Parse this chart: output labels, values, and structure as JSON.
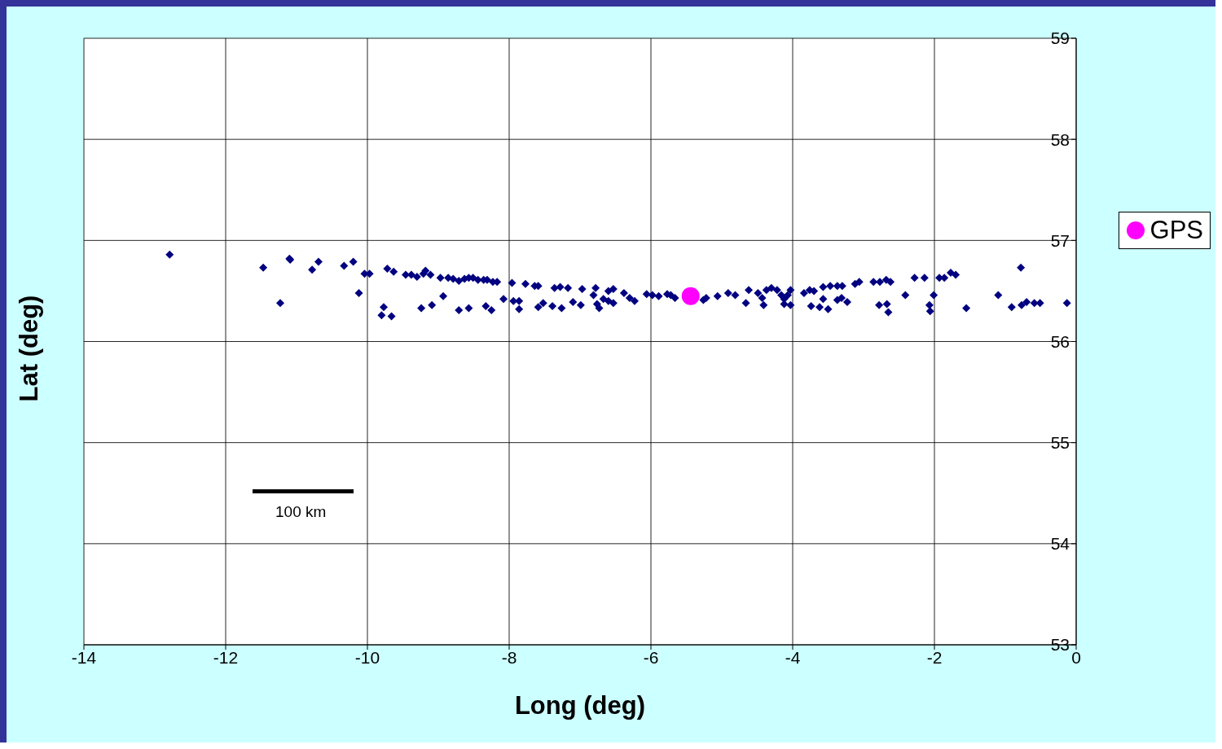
{
  "chart_data": {
    "type": "scatter",
    "xlabel": "Long (deg)",
    "ylabel": "Lat (deg)",
    "xlim": [
      -14,
      0
    ],
    "xticks": [
      -14,
      -12,
      -10,
      -8,
      -6,
      -4,
      -2,
      0
    ],
    "ylim": [
      53,
      59
    ],
    "yticks": [
      53,
      54,
      55,
      56,
      57,
      58,
      59
    ],
    "grid": true,
    "legend": "right",
    "marker": "diamond",
    "annotations": [
      "100 km"
    ],
    "series": [
      {
        "color": "#000080",
        "x": [
          -12.79,
          -11.47,
          -11.23,
          -11.1,
          -11.09,
          -10.78,
          -10.69,
          -10.33,
          -10.2,
          -10.12,
          -10.04,
          -9.97,
          -9.8,
          -9.77,
          -9.72,
          -9.66,
          -9.63,
          -9.46,
          -9.38,
          -9.3,
          -9.21,
          -9.18,
          -9.11,
          -9.24,
          -9.09,
          -8.97,
          -8.93,
          -8.86,
          -8.79,
          -8.71,
          -8.63,
          -8.57,
          -8.51,
          -8.44,
          -8.36,
          -8.31,
          -8.23,
          -8.17,
          -8.71,
          -8.57,
          -8.33,
          -8.25,
          -8.08,
          -7.96,
          -7.94,
          -7.86,
          -7.86,
          -7.77,
          -7.64,
          -7.59,
          -7.59,
          -7.52,
          -7.39,
          -7.36,
          -7.28,
          -7.26,
          -7.17,
          -7.1,
          -6.99,
          -6.97,
          -6.81,
          -6.76,
          -6.78,
          -6.73,
          -6.67,
          -6.6,
          -6.53,
          -6.6,
          -6.53,
          -6.38,
          -6.3,
          -6.23,
          -6.06,
          -5.98,
          -5.89,
          -5.77,
          -5.72,
          -5.66,
          -5.26,
          -5.22,
          -5.06,
          -4.91,
          -4.81,
          -4.62,
          -4.66,
          -4.49,
          -4.43,
          -4.37,
          -4.41,
          -4.3,
          -4.22,
          -4.16,
          -4.12,
          -4.07,
          -4.03,
          -4.12,
          -4.03,
          -3.84,
          -3.76,
          -3.7,
          -3.74,
          -3.62,
          -3.5,
          -3.57,
          -3.57,
          -3.47,
          -3.37,
          -3.31,
          -3.23,
          -3.37,
          -3.3,
          -3.12,
          -3.06,
          -2.86,
          -2.77,
          -2.68,
          -2.62,
          -2.78,
          -2.67,
          -2.65,
          -2.41,
          -2.28,
          -2.14,
          -2.07,
          -2.06,
          -2.01,
          -1.93,
          -1.86,
          -1.77,
          -1.7,
          -1.55,
          -1.1,
          -0.91,
          -0.78,
          -0.77,
          -0.7,
          -0.59,
          -0.51,
          -0.13
        ],
        "values": [
          56.86,
          56.73,
          56.38,
          56.82,
          56.81,
          56.71,
          56.79,
          56.75,
          56.79,
          56.48,
          56.67,
          56.67,
          56.26,
          56.34,
          56.72,
          56.25,
          56.69,
          56.66,
          56.66,
          56.64,
          56.67,
          56.7,
          56.66,
          56.33,
          56.36,
          56.63,
          56.45,
          56.63,
          56.62,
          56.6,
          56.62,
          56.63,
          56.63,
          56.61,
          56.61,
          56.61,
          56.59,
          56.59,
          56.31,
          56.33,
          56.35,
          56.31,
          56.42,
          56.58,
          56.4,
          56.4,
          56.32,
          56.57,
          56.55,
          56.55,
          56.34,
          56.38,
          56.35,
          56.53,
          56.54,
          56.33,
          56.53,
          56.39,
          56.36,
          56.52,
          56.46,
          56.37,
          56.53,
          56.33,
          56.42,
          56.5,
          56.52,
          56.4,
          56.38,
          56.48,
          56.43,
          56.4,
          56.47,
          56.46,
          56.45,
          56.47,
          56.46,
          56.43,
          56.41,
          56.43,
          56.45,
          56.48,
          56.46,
          56.51,
          56.38,
          56.48,
          56.43,
          56.51,
          56.36,
          56.53,
          56.51,
          56.46,
          56.42,
          56.46,
          56.51,
          56.37,
          56.36,
          56.48,
          56.51,
          56.5,
          56.35,
          56.34,
          56.32,
          56.42,
          56.54,
          56.55,
          56.41,
          56.43,
          56.39,
          56.55,
          56.55,
          56.57,
          56.59,
          56.59,
          56.59,
          56.61,
          56.59,
          56.36,
          56.37,
          56.29,
          56.46,
          56.63,
          56.63,
          56.36,
          56.3,
          56.46,
          56.63,
          56.63,
          56.68,
          56.66,
          56.33,
          56.46,
          56.34,
          56.73,
          56.36,
          56.39,
          56.38,
          56.38,
          56.38
        ]
      },
      {
        "name": "GPS",
        "color": "#ff00ff",
        "marker": "circle",
        "x": [
          -5.44
        ],
        "values": [
          56.45
        ]
      }
    ]
  }
}
